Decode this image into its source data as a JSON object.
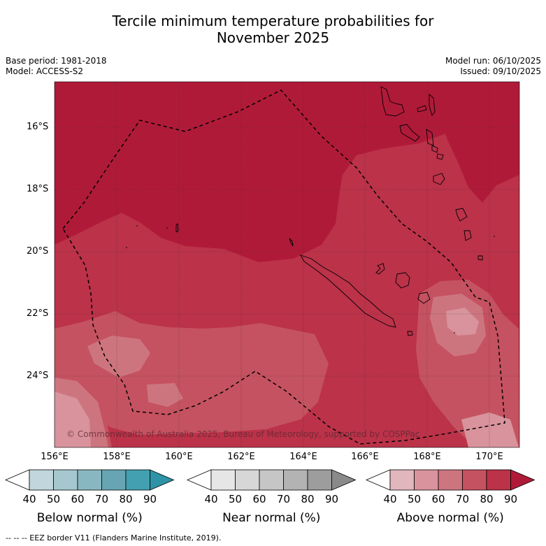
{
  "title_line1": "Tercile minimum temperature probabilities for",
  "title_line2": "November 2025",
  "meta_left": {
    "base_period": "Base period: 1981-2018",
    "model": "Model: ACCESS-S2"
  },
  "meta_right": {
    "model_run": "Model run: 06/10/2025",
    "issued": "Issued: 09/10/2025"
  },
  "map": {
    "lat_labels": [
      "16°S",
      "18°S",
      "20°S",
      "22°S",
      "24°S"
    ],
    "lon_labels": [
      "156°E",
      "158°E",
      "160°E",
      "162°E",
      "164°E",
      "166°E",
      "168°E",
      "170°E"
    ],
    "copyright": "© Commonwealth of Australia 2025, Bureau of Meteorology, supported by COSPPac"
  },
  "colorbars": [
    {
      "label": "Below normal (%)",
      "ticks": [
        "40",
        "50",
        "60",
        "70",
        "80",
        "90"
      ],
      "colors": [
        "#c1d7dd",
        "#a6c7ce",
        "#89b7c1",
        "#68a5b3",
        "#43a0b0",
        "#2e93a7"
      ]
    },
    {
      "label": "Near normal (%)",
      "ticks": [
        "40",
        "50",
        "60",
        "70",
        "80",
        "90"
      ],
      "colors": [
        "#e6e6e6",
        "#d7d7d7",
        "#c6c6c6",
        "#b3b3b3",
        "#9d9d9d",
        "#8a8a8a"
      ]
    },
    {
      "label": "Above normal (%)",
      "ticks": [
        "40",
        "50",
        "60",
        "70",
        "80",
        "90"
      ],
      "colors": [
        "#e1b6bd",
        "#d8939c",
        "#cd757f",
        "#c55260",
        "#bb3249",
        "#b01a39"
      ]
    }
  ],
  "footer": "-- -- -- EEZ border V11 (Flanders Marine Institute, 2019).",
  "colors": {
    "above_90": "#b01a39",
    "above_80": "#bb3249",
    "above_70": "#c55260",
    "above_60": "#cd757f",
    "above_50": "#d8939c",
    "above_40": "#e1b6bd"
  }
}
